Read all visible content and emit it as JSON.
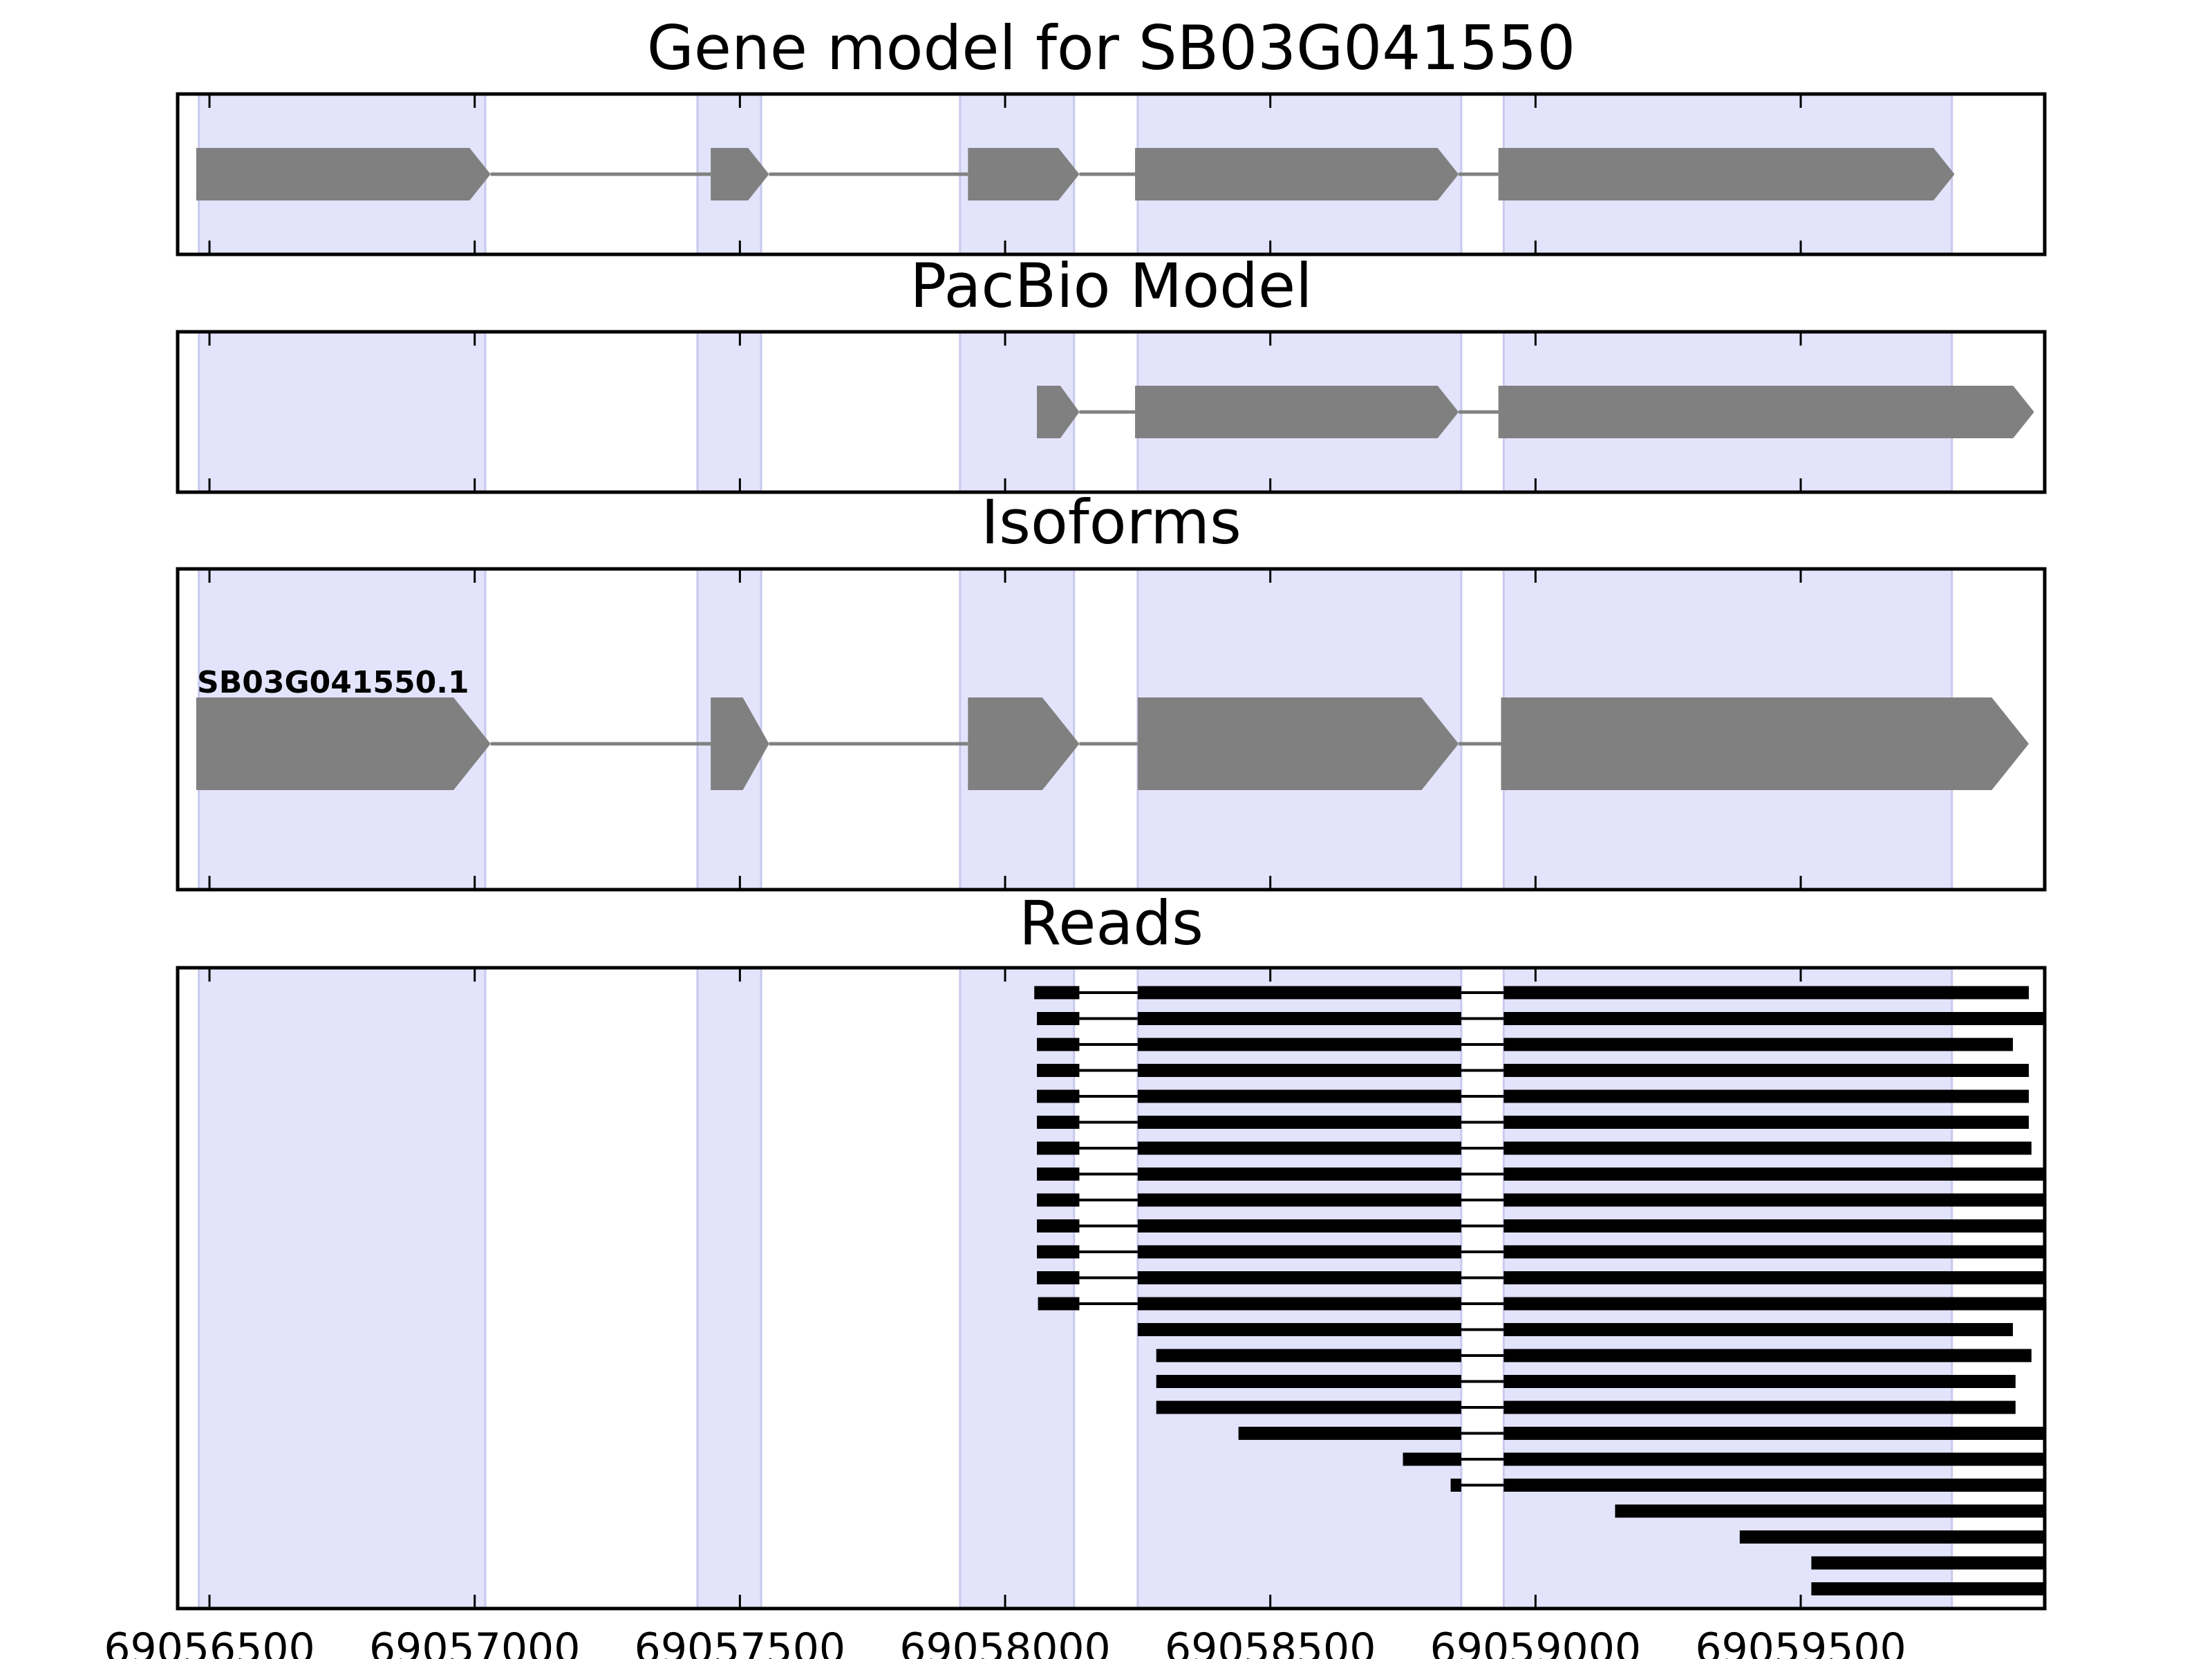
{
  "chart_data": {
    "type": "gene-track",
    "xlim": [
      69056440,
      69059960
    ],
    "x_ticks": [
      69056500,
      69057000,
      69057500,
      69058000,
      69058500,
      69059000,
      69059500
    ],
    "x_tick_labels": [
      "69056500",
      "69057000",
      "69057500",
      "69058000",
      "69058500",
      "69059000",
      "69059500"
    ],
    "highlight_regions": [
      [
        69056480,
        69057020
      ],
      [
        69057420,
        69057540
      ],
      [
        69057915,
        69058130
      ],
      [
        69058250,
        69058860
      ],
      [
        69058940,
        69059785
      ]
    ],
    "colors": {
      "highlight": "#e3e3fb",
      "exon": "#808080",
      "read": "#000000"
    },
    "panels": [
      {
        "title": "Gene model for SB03G041550",
        "tracks": [
          {
            "exons": [
              [
                69056475,
                69057030
              ],
              [
                69057445,
                69057555
              ],
              [
                69057930,
                69058140
              ],
              [
                69058245,
                69058855
              ],
              [
                69058930,
                69059790
              ]
            ]
          }
        ]
      },
      {
        "title": "PacBio Model",
        "tracks": [
          {
            "exons": [
              [
                69058060,
                69058140
              ],
              [
                69058245,
                69058855
              ],
              [
                69058930,
                69059940
              ]
            ]
          }
        ]
      },
      {
        "title": "Isoforms",
        "tracks": [
          {
            "label": "SB03G041550.1",
            "exons": [
              [
                69056475,
                69057030
              ],
              [
                69057445,
                69057555
              ],
              [
                69057930,
                69058140
              ],
              [
                69058250,
                69058855
              ],
              [
                69058935,
                69059930
              ]
            ]
          }
        ]
      },
      {
        "title": "Reads",
        "reads": [
          [
            [
              69058055,
              69058140
            ],
            [
              69058250,
              69058860
            ],
            [
              69058940,
              69059930
            ]
          ],
          [
            [
              69058060,
              69058140
            ],
            [
              69058250,
              69058860
            ],
            [
              69058940,
              69059960
            ]
          ],
          [
            [
              69058060,
              69058140
            ],
            [
              69058250,
              69058860
            ],
            [
              69058940,
              69059900
            ]
          ],
          [
            [
              69058060,
              69058140
            ],
            [
              69058250,
              69058860
            ],
            [
              69058940,
              69059930
            ]
          ],
          [
            [
              69058060,
              69058140
            ],
            [
              69058250,
              69058860
            ],
            [
              69058940,
              69059930
            ]
          ],
          [
            [
              69058060,
              69058140
            ],
            [
              69058250,
              69058860
            ],
            [
              69058940,
              69059930
            ]
          ],
          [
            [
              69058060,
              69058140
            ],
            [
              69058250,
              69058860
            ],
            [
              69058940,
              69059935
            ]
          ],
          [
            [
              69058060,
              69058140
            ],
            [
              69058250,
              69058860
            ],
            [
              69058940,
              69059960
            ]
          ],
          [
            [
              69058060,
              69058140
            ],
            [
              69058250,
              69058860
            ],
            [
              69058940,
              69059960
            ]
          ],
          [
            [
              69058060,
              69058140
            ],
            [
              69058250,
              69058860
            ],
            [
              69058940,
              69059960
            ]
          ],
          [
            [
              69058060,
              69058140
            ],
            [
              69058250,
              69058860
            ],
            [
              69058940,
              69059960
            ]
          ],
          [
            [
              69058060,
              69058140
            ],
            [
              69058250,
              69058860
            ],
            [
              69058940,
              69059960
            ]
          ],
          [
            [
              69058062,
              69058140
            ],
            [
              69058250,
              69058860
            ],
            [
              69058940,
              69059960
            ]
          ],
          [
            [
              69058250,
              69058860
            ],
            [
              69058940,
              69059900
            ]
          ],
          [
            [
              69058285,
              69058860
            ],
            [
              69058940,
              69059935
            ]
          ],
          [
            [
              69058285,
              69058860
            ],
            [
              69058940,
              69059905
            ]
          ],
          [
            [
              69058285,
              69058860
            ],
            [
              69058940,
              69059905
            ]
          ],
          [
            [
              69058440,
              69058860
            ],
            [
              69058940,
              69059960
            ]
          ],
          [
            [
              69058750,
              69058860
            ],
            [
              69058940,
              69059960
            ]
          ],
          [
            [
              69058840,
              69058860
            ],
            [
              69058940,
              69059960
            ]
          ],
          [
            [
              69059150,
              69059960
            ]
          ],
          [
            [
              69059385,
              69059960
            ]
          ],
          [
            [
              69059520,
              69059960
            ]
          ],
          [
            [
              69059520,
              69059960
            ]
          ]
        ]
      }
    ]
  }
}
